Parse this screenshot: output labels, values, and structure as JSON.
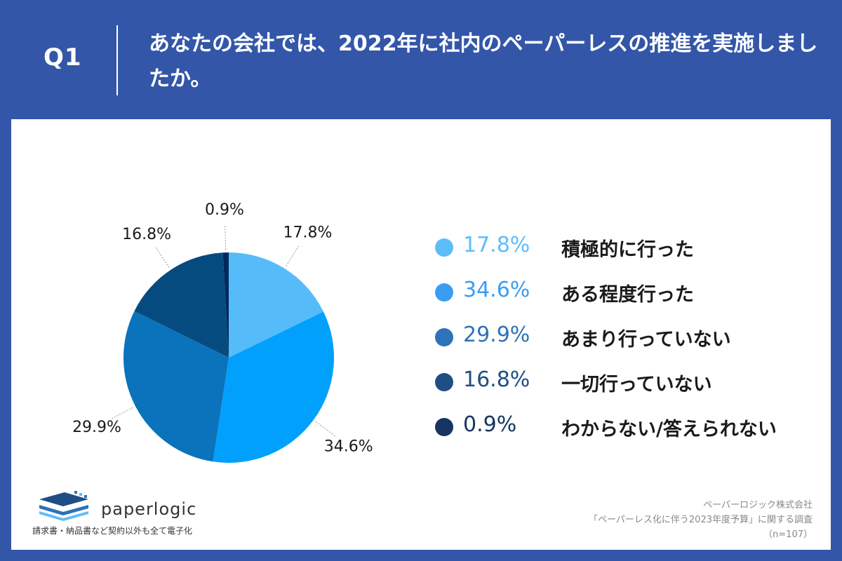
{
  "header": {
    "q_label": "Q1",
    "question": "あなたの会社では、2022年に社内のペーパーレスの推進を実施しましたか。"
  },
  "colors": {
    "background": "#3356a8",
    "panel": "#ffffff"
  },
  "chart_data": {
    "type": "pie",
    "start_angle_deg": 0,
    "direction": "clockwise",
    "slices": [
      {
        "label": "積極的に行った",
        "value": 17.8,
        "value_label": "17.8%",
        "color": "#55bbf9"
      },
      {
        "label": "ある程度行った",
        "value": 34.6,
        "value_label": "34.6%",
        "color": "#00a0fc"
      },
      {
        "label": "あまり行っていない",
        "value": 29.9,
        "value_label": "29.9%",
        "color": "#0a73bb"
      },
      {
        "label": "一切行っていない",
        "value": 16.8,
        "value_label": "16.8%",
        "color": "#054b80"
      },
      {
        "label": "わからない/答えられない",
        "value": 0.9,
        "value_label": "0.9%",
        "color": "#002a5d"
      }
    ]
  },
  "legend": {
    "items": [
      {
        "value": "17.8%",
        "label": "積極的に行った",
        "dot": "#5ebdf8",
        "text_color": "#5ebdf8"
      },
      {
        "value": "34.6%",
        "label": "ある程度行った",
        "dot": "#3a9df2",
        "text_color": "#3a9df2"
      },
      {
        "value": "29.9%",
        "label": "あまり行っていない",
        "dot": "#2e72b8",
        "text_color": "#2e72b8"
      },
      {
        "value": "16.8%",
        "label": "一切行っていない",
        "dot": "#1f4e85",
        "text_color": "#1f4e85"
      },
      {
        "value": "0.9%",
        "label": "わからない/答えられない",
        "dot": "#163661",
        "text_color": "#163661"
      }
    ]
  },
  "logo": {
    "name": "paperlogic",
    "tagline": "請求書・納品書など契約以外も全て電子化",
    "icon": "stacked-paper-icon"
  },
  "source": {
    "company": "ペーパーロジック株式会社",
    "survey": "「ペーパーレス化に伴う2023年度予算」に関する調査",
    "sample": "（n=107）"
  }
}
